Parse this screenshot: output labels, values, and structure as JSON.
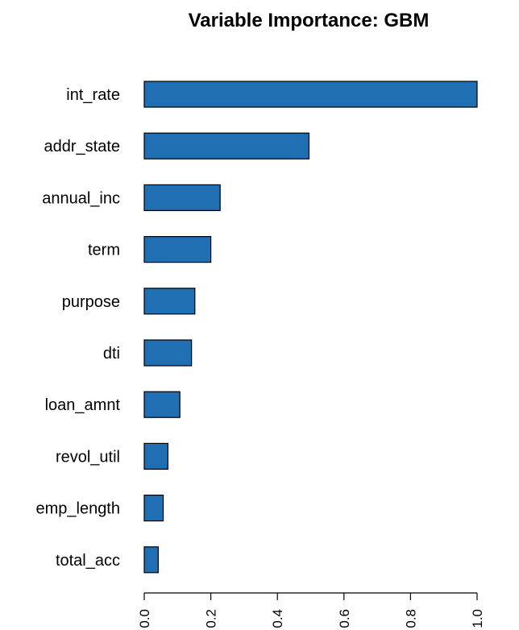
{
  "chart_data": {
    "type": "bar",
    "orientation": "horizontal",
    "title": "Variable Importance: GBM",
    "xlabel": "",
    "ylabel": "",
    "categories": [
      "int_rate",
      "addr_state",
      "annual_inc",
      "term",
      "purpose",
      "dti",
      "loan_amnt",
      "revol_util",
      "emp_length",
      "total_acc"
    ],
    "values": [
      1.0,
      0.495,
      0.228,
      0.2,
      0.152,
      0.142,
      0.107,
      0.071,
      0.057,
      0.042
    ],
    "xlim": [
      0,
      1
    ],
    "xticks": [
      0.0,
      0.2,
      0.4,
      0.6,
      0.8,
      1.0
    ],
    "xtick_labels": [
      "0.0",
      "0.2",
      "0.4",
      "0.6",
      "0.8",
      "1.0"
    ],
    "grid": false,
    "legend": "none",
    "bar_color": "#1f6fb2",
    "bar_edge_color": "#000000"
  }
}
